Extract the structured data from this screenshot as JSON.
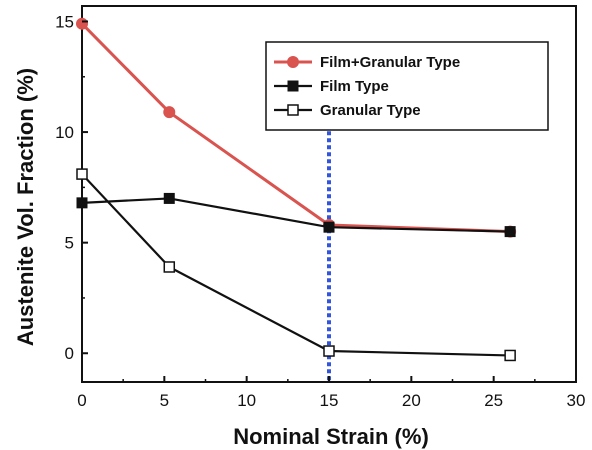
{
  "chart_data": {
    "type": "line",
    "xlabel": "Nominal Strain (%)",
    "ylabel": "Austenite Vol. Fraction (%)",
    "xlim": [
      0,
      30
    ],
    "ylim": [
      -1.3,
      15.7
    ],
    "xticks": [
      0,
      5,
      10,
      15,
      20,
      25,
      30
    ],
    "yticks": [
      0,
      5,
      10,
      15
    ],
    "grid": false,
    "legend_position": "top-right",
    "reference_line": {
      "x": 15,
      "style": "dotted",
      "color": "#3355dd"
    },
    "series": [
      {
        "name": "Film+Granular Type",
        "color": "#d9534f",
        "marker": "circle-filled",
        "x": [
          0,
          5.3,
          15,
          26
        ],
        "y": [
          14.9,
          10.9,
          5.8,
          5.5
        ]
      },
      {
        "name": "Film Type",
        "color": "#111111",
        "marker": "square-filled",
        "x": [
          0,
          5.3,
          15,
          26
        ],
        "y": [
          6.8,
          7.0,
          5.7,
          5.5
        ]
      },
      {
        "name": "Granular Type",
        "color": "#111111",
        "marker": "square-open",
        "x": [
          0,
          5.3,
          15,
          26
        ],
        "y": [
          8.1,
          3.9,
          0.1,
          -0.1
        ]
      }
    ]
  }
}
